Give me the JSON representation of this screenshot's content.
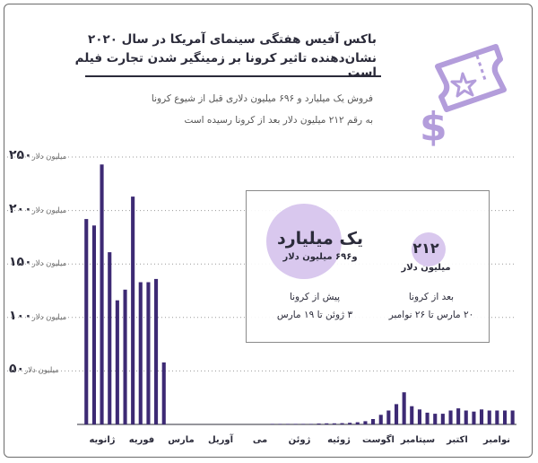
{
  "header": {
    "title_line1": "باکس آفیس هفتگی سینمای آمریکا در سال ۲۰۲۰",
    "title_line2": "نشان‌دهنده تاثیر کرونا بر زمینگیر شدن تجارت فیلم است",
    "subtitle_line1": "فروش یک میلیارد و ۶۹۶ میلیون دلاری قبل از شیوع کرونا",
    "subtitle_line2": "به رقم ۲۱۲ میلیون دلار بعد از کرونا رسیده است"
  },
  "icons": {
    "ticket": "ticket-dollar-icon",
    "ticket_color": "#b39ddb"
  },
  "y_axis": {
    "unit": "میلیون دلار",
    "ticks": [
      {
        "value": 250,
        "label": "۲۵۰"
      },
      {
        "value": 200,
        "label": "۲۰۰"
      },
      {
        "value": 150,
        "label": "۱۵۰"
      },
      {
        "value": 100,
        "label": "۱۰۰"
      },
      {
        "value": 50,
        "label": "۵۰"
      }
    ]
  },
  "info_box": {
    "before_value": "یک میلیارد",
    "before_sub": "و۶۹۶ میلیون دلار",
    "before_note1": "پیش از کرونا",
    "before_note2": "۳ ژوئن تا ۱۹ مارس",
    "after_value": "۲۱۲",
    "after_sub": "میلیون دلار",
    "after_note1": "بعد از کرونا",
    "after_note2": "۲۰ مارس تا ۲۶ نوامبر",
    "circle_color": "#d9c8ee"
  },
  "chart_data": {
    "type": "bar",
    "title": "باکس آفیس هفتگی سینمای آمریکا در سال ۲۰۲۰",
    "ylabel": "میلیون دلار",
    "ylim": [
      0,
      250
    ],
    "bar_color": "#3d2a74",
    "months": [
      "ژانویه",
      "فوریه",
      "مارس",
      "آوریل",
      "می",
      "ژوئن",
      "ژوئیه",
      "اگوست",
      "سپتامبر",
      "اکتبر",
      "نوامبر"
    ],
    "values": [
      192,
      186,
      243,
      161,
      116,
      126,
      213,
      133,
      133,
      136,
      58,
      0,
      0,
      0,
      0,
      0,
      0,
      0,
      0,
      0,
      0,
      0,
      0,
      0,
      0.5,
      0.5,
      0.5,
      0.5,
      0.5,
      0.5,
      0.8,
      1,
      1,
      1.2,
      1.5,
      2,
      3,
      5,
      9,
      13,
      19,
      30,
      17,
      14,
      11,
      10,
      10,
      13,
      15,
      13,
      12,
      14,
      13,
      13,
      13,
      13
    ]
  }
}
